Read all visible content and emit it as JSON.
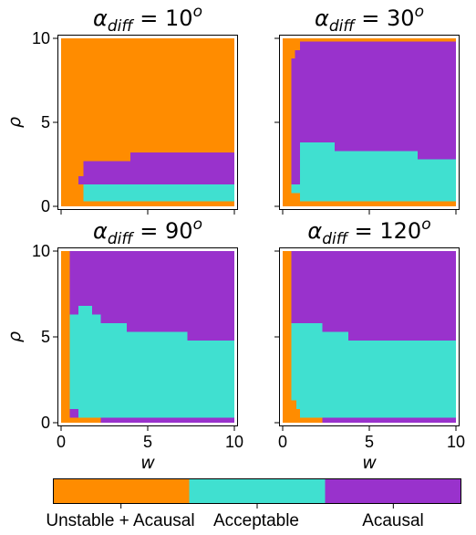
{
  "colors": {
    "unstable_acausal": "#ff8c00",
    "acceptable": "#40e0d0",
    "acausal": "#9932cc"
  },
  "colorbar": {
    "labels": [
      "Unstable + Acausal",
      "Acceptable",
      "Acausal"
    ]
  },
  "chart_data": [
    {
      "type": "heatmap",
      "title_base": "α",
      "title_sub": "diff",
      "title_rest": " = 10",
      "title_sup": "o",
      "xlabel": "",
      "ylabel": "ρ",
      "xlim": [
        0,
        10
      ],
      "ylim": [
        0,
        10
      ],
      "xticks": [
        0,
        5,
        10
      ],
      "yticks": [
        0,
        5,
        10
      ],
      "regions": [
        {
          "class": "unstable_acausal",
          "x": [
            0,
            10
          ],
          "y": [
            0,
            10
          ]
        },
        {
          "class": "acausal",
          "x": [
            1.3,
            4.0
          ],
          "y": [
            1.3,
            2.7
          ]
        },
        {
          "class": "acausal",
          "x": [
            4.0,
            10
          ],
          "y": [
            1.3,
            3.2
          ]
        },
        {
          "class": "acausal",
          "x": [
            1.0,
            1.3
          ],
          "y": [
            1.3,
            1.8
          ]
        },
        {
          "class": "acceptable",
          "x": [
            1.3,
            10
          ],
          "y": [
            0.3,
            1.3
          ]
        }
      ]
    },
    {
      "type": "heatmap",
      "title_base": "α",
      "title_sub": "diff",
      "title_rest": " = 30",
      "title_sup": "o",
      "xlabel": "",
      "ylabel": "",
      "xlim": [
        0,
        10
      ],
      "ylim": [
        0,
        10
      ],
      "xticks": [
        0,
        5,
        10
      ],
      "yticks": [
        0,
        5,
        10
      ],
      "regions": [
        {
          "class": "unstable_acausal",
          "x": [
            0,
            10
          ],
          "y": [
            0,
            10
          ]
        },
        {
          "class": "acausal",
          "x": [
            1.0,
            10
          ],
          "y": [
            0.3,
            9.8
          ]
        },
        {
          "class": "acausal",
          "x": [
            0.7,
            1.0
          ],
          "y": [
            1.3,
            9.3
          ]
        },
        {
          "class": "acausal",
          "x": [
            0.5,
            0.7
          ],
          "y": [
            1.3,
            8.8
          ]
        },
        {
          "class": "acceptable",
          "x": [
            1.0,
            3.0
          ],
          "y": [
            0.3,
            3.8
          ]
        },
        {
          "class": "acceptable",
          "x": [
            3.0,
            7.8
          ],
          "y": [
            0.3,
            3.3
          ]
        },
        {
          "class": "acceptable",
          "x": [
            7.8,
            10
          ],
          "y": [
            0.3,
            2.8
          ]
        },
        {
          "class": "acceptable",
          "x": [
            0.5,
            1.0
          ],
          "y": [
            0.8,
            1.3
          ]
        },
        {
          "class": "unstable_acausal",
          "x": [
            0,
            10
          ],
          "y": [
            0,
            0.3
          ]
        }
      ]
    },
    {
      "type": "heatmap",
      "title_base": "α",
      "title_sub": "diff",
      "title_rest": " = 90",
      "title_sup": "o",
      "xlabel": "w",
      "ylabel": "ρ",
      "xlim": [
        0,
        10
      ],
      "ylim": [
        0,
        10
      ],
      "xticks": [
        0,
        5,
        10
      ],
      "yticks": [
        0,
        5,
        10
      ],
      "regions": [
        {
          "class": "acausal",
          "x": [
            0,
            10
          ],
          "y": [
            0,
            10
          ]
        },
        {
          "class": "unstable_acausal",
          "x": [
            0,
            0.5
          ],
          "y": [
            0,
            10
          ]
        },
        {
          "class": "acceptable",
          "x": [
            0.5,
            1.0
          ],
          "y": [
            0.3,
            6.3
          ]
        },
        {
          "class": "acceptable",
          "x": [
            1.0,
            1.8
          ],
          "y": [
            0.3,
            6.8
          ]
        },
        {
          "class": "acceptable",
          "x": [
            1.8,
            2.3
          ],
          "y": [
            0.3,
            6.3
          ]
        },
        {
          "class": "acceptable",
          "x": [
            2.3,
            3.8
          ],
          "y": [
            0.3,
            5.8
          ]
        },
        {
          "class": "acceptable",
          "x": [
            3.8,
            7.3
          ],
          "y": [
            0.3,
            5.3
          ]
        },
        {
          "class": "acceptable",
          "x": [
            7.3,
            10
          ],
          "y": [
            0.3,
            4.8
          ]
        },
        {
          "class": "acausal",
          "x": [
            0.5,
            1.0
          ],
          "y": [
            0.3,
            0.8
          ]
        },
        {
          "class": "unstable_acausal",
          "x": [
            0,
            2.3
          ],
          "y": [
            0,
            0.3
          ]
        },
        {
          "class": "acausal",
          "x": [
            2.3,
            2.8
          ],
          "y": [
            0,
            0.3
          ]
        }
      ]
    },
    {
      "type": "heatmap",
      "title_base": "α",
      "title_sub": "diff",
      "title_rest": " = 120",
      "title_sup": "o",
      "xlabel": "w",
      "ylabel": "",
      "xlim": [
        0,
        10
      ],
      "ylim": [
        0,
        10
      ],
      "xticks": [
        0,
        5,
        10
      ],
      "yticks": [
        0,
        5,
        10
      ],
      "regions": [
        {
          "class": "acausal",
          "x": [
            0,
            10
          ],
          "y": [
            0,
            10
          ]
        },
        {
          "class": "unstable_acausal",
          "x": [
            0,
            0.5
          ],
          "y": [
            0,
            10
          ]
        },
        {
          "class": "acceptable",
          "x": [
            0.5,
            2.3
          ],
          "y": [
            0.3,
            5.8
          ]
        },
        {
          "class": "acceptable",
          "x": [
            2.3,
            10
          ],
          "y": [
            0.3,
            4.8
          ]
        },
        {
          "class": "acceptable",
          "x": [
            2.3,
            3.8
          ],
          "y": [
            4.8,
            5.3
          ]
        },
        {
          "class": "unstable_acausal",
          "x": [
            0.5,
            0.8
          ],
          "y": [
            0.3,
            1.3
          ]
        },
        {
          "class": "unstable_acausal",
          "x": [
            0.8,
            1.0
          ],
          "y": [
            0.3,
            0.8
          ]
        },
        {
          "class": "unstable_acausal",
          "x": [
            0,
            2.3
          ],
          "y": [
            0,
            0.3
          ]
        },
        {
          "class": "acausal",
          "x": [
            2.3,
            3.3
          ],
          "y": [
            0,
            0.3
          ]
        }
      ]
    }
  ]
}
